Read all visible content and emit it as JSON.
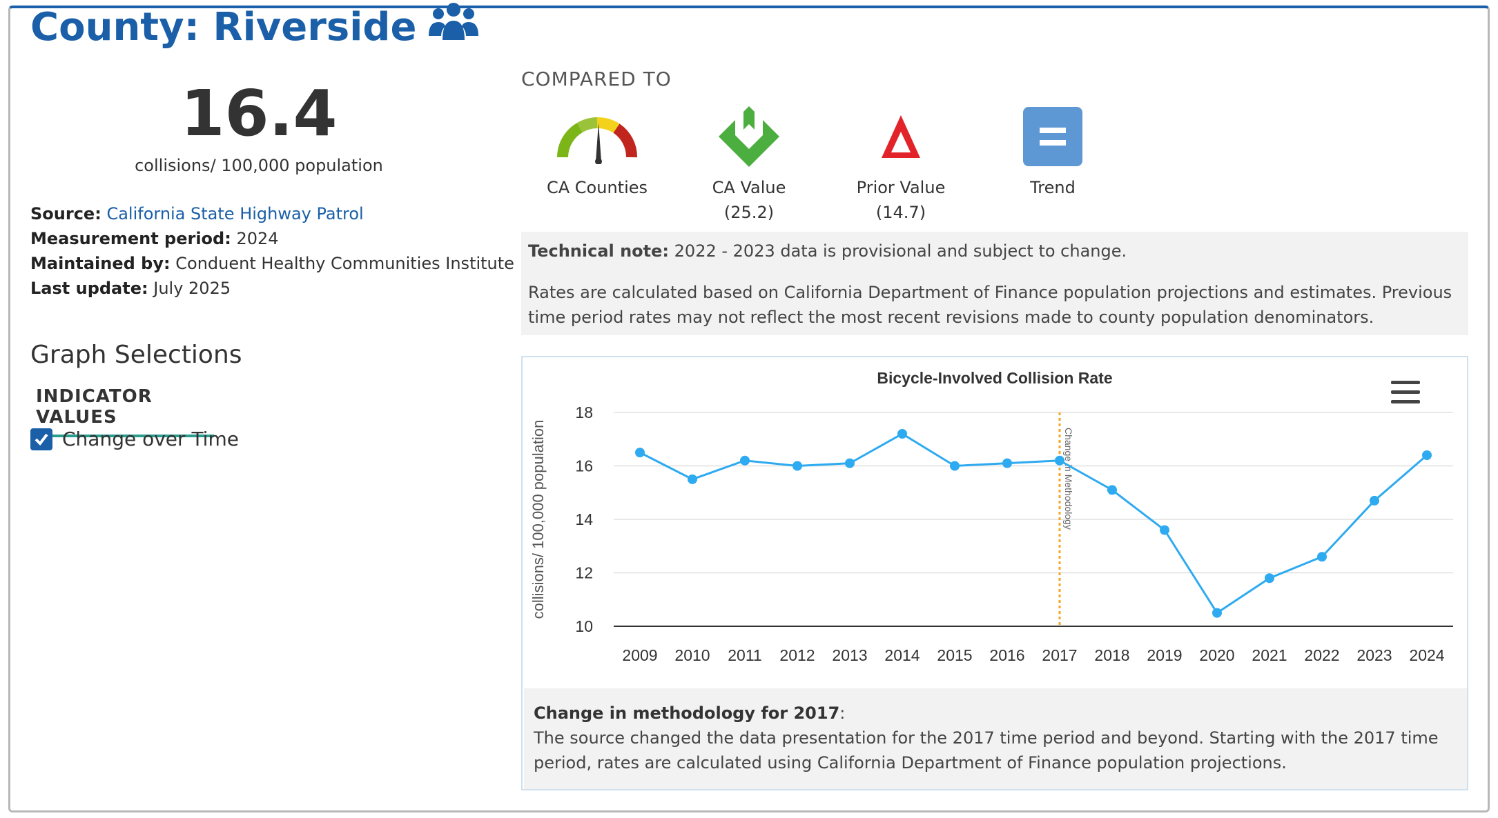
{
  "header": {
    "title": "County: Riverside",
    "icon": "people-group-icon"
  },
  "summary": {
    "value": "16.4",
    "units": "collisions/ 100,000 population"
  },
  "meta": {
    "source_label": "Source:",
    "source_value": "California State Highway Patrol",
    "period_label": "Measurement period:",
    "period_value": "2024",
    "maintained_label": "Maintained by:",
    "maintained_value": "Conduent Healthy Communities Institute",
    "update_label": "Last update:",
    "update_value": "July 2025"
  },
  "graph_selections": {
    "title": "Graph Selections",
    "tab": "INDICATOR VALUES",
    "checkbox_label": "Change over Time",
    "checked": true
  },
  "comparisons": {
    "heading": "COMPARED TO",
    "items": [
      {
        "label": "CA Counties",
        "sub": "",
        "icon": "gauge-icon"
      },
      {
        "label": "CA Value",
        "sub": "(25.2)",
        "icon": "green-arrows-down-icon"
      },
      {
        "label": "Prior Value",
        "sub": "(14.7)",
        "icon": "red-triangle-up-icon"
      },
      {
        "label": "Trend",
        "sub": "",
        "icon": "equal-sign-icon"
      }
    ]
  },
  "technical_note": {
    "label": "Technical note:",
    "text": "2022 - 2023 data is provisional and subject to change.",
    "paragraph": "Rates are calculated based on California Department of Finance population projections and estimates. Previous time period rates may not reflect the most recent revisions made to county population denominators."
  },
  "footnote": {
    "label": "Change in methodology for 2017",
    "text": "The source changed the data presentation for the 2017 time period and beyond. Starting with the 2017 time period, rates are calculated using California Department of Finance population projections."
  },
  "colors": {
    "brand": "#1a5fa8",
    "line": "#2eaaf0",
    "marker_line": "#f5a623",
    "teal": "#2a9d8f"
  },
  "chart_data": {
    "type": "line",
    "title": "Bicycle-Involved Collision Rate",
    "ylabel": "collisions/ 100,000 population",
    "xlabel": "",
    "categories": [
      "2009",
      "2010",
      "2011",
      "2012",
      "2013",
      "2014",
      "2015",
      "2016",
      "2017",
      "2018",
      "2019",
      "2020",
      "2021",
      "2022",
      "2023",
      "2024"
    ],
    "series": [
      {
        "values": [
          16.5,
          15.5,
          16.2,
          16.0,
          16.1,
          17.2,
          16.0,
          16.1,
          16.2,
          15.1,
          13.6,
          10.5,
          11.8,
          12.6,
          14.7,
          16.4
        ]
      }
    ],
    "ylim": [
      10,
      18
    ],
    "yticks": [
      10,
      12,
      14,
      16,
      18
    ],
    "plot_line": {
      "x": "2017",
      "label": "Change in Methodology"
    },
    "grid": true,
    "menu_icon": "hamburger-menu-icon"
  }
}
